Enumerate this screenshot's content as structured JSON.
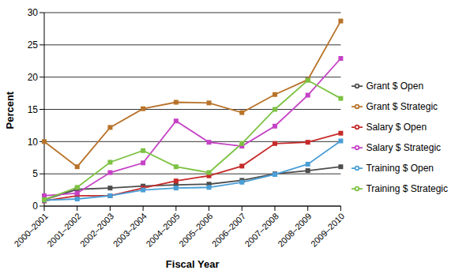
{
  "chart_data": {
    "type": "line",
    "x_label": "Fiscal Year",
    "y_label": "Percent",
    "categories": [
      "2000–2001",
      "2001–2002",
      "2002–2003",
      "2003–2004",
      "2004–2005",
      "2005–2006",
      "2006–2007",
      "2007–2008",
      "2008–2009",
      "2009–2010"
    ],
    "series": [
      {
        "name": "Grant $ Open",
        "color": "#4d4d4d",
        "marker": "square",
        "values": [
          1.0,
          2.6,
          2.8,
          3.1,
          3.3,
          3.4,
          4.0,
          5.0,
          5.5,
          6.1
        ]
      },
      {
        "name": "Grant $ Strategic",
        "color": "#b8732a",
        "marker": "square",
        "values": [
          10.0,
          6.1,
          12.2,
          15.1,
          16.1,
          16.0,
          14.5,
          17.3,
          19.6,
          28.7
        ]
      },
      {
        "name": "Salary $ Open",
        "color": "#c62a2a",
        "marker": "square",
        "values": [
          0.8,
          1.6,
          1.6,
          2.8,
          3.9,
          4.7,
          6.2,
          9.7,
          9.9,
          11.3
        ]
      },
      {
        "name": "Salary $ Strategic",
        "color": "#c542c5",
        "marker": "square",
        "values": [
          1.6,
          2.0,
          5.2,
          6.7,
          13.2,
          9.9,
          9.3,
          12.4,
          17.2,
          22.9
        ]
      },
      {
        "name": "Training $ Open",
        "color": "#4a9fd6",
        "marker": "square",
        "values": [
          0.9,
          1.1,
          1.6,
          2.5,
          2.8,
          2.9,
          3.7,
          4.9,
          6.5,
          10.1
        ]
      },
      {
        "name": "Training $ Strategic",
        "color": "#7dc242",
        "marker": "square",
        "values": [
          1.0,
          2.9,
          6.8,
          8.6,
          6.1,
          5.2,
          9.7,
          15.0,
          19.5,
          16.7
        ]
      }
    ],
    "ylim": [
      0,
      30
    ],
    "yticks": [
      0,
      5,
      10,
      15,
      20,
      25,
      30
    ],
    "grid": true,
    "legend": "right"
  }
}
